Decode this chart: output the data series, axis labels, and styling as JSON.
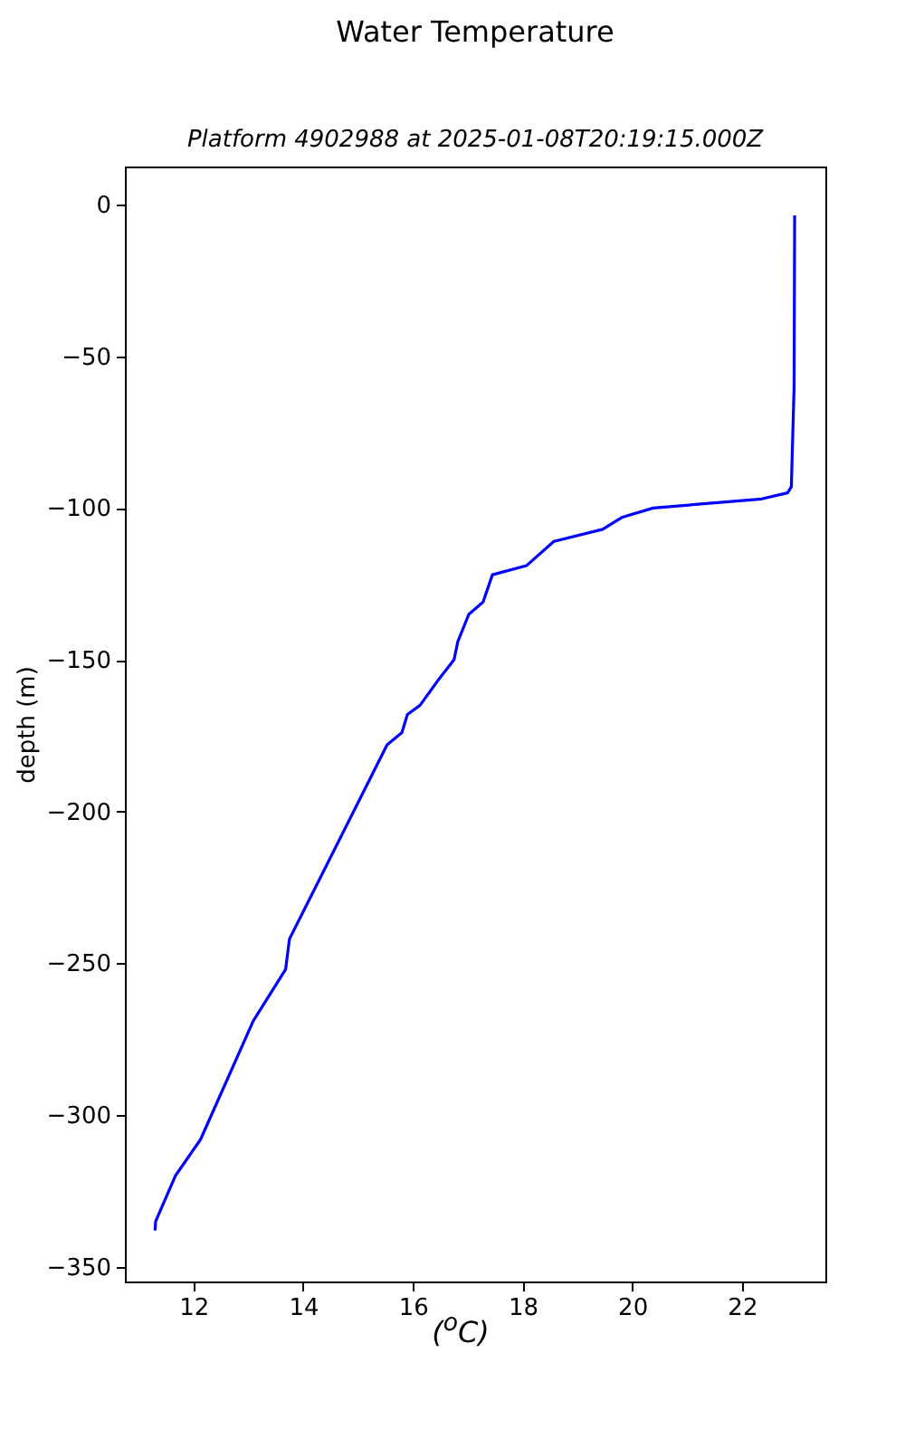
{
  "chart_data": {
    "type": "line",
    "title": "Water Temperature",
    "subtitle": "Platform 4902988 at 2025-01-08T20:19:15.000Z",
    "xlabel": "($^{o}$C)",
    "ylabel": "depth (m)",
    "x": [
      22.96,
      22.95,
      22.9,
      22.83,
      22.36,
      20.38,
      19.82,
      19.46,
      18.57,
      18.07,
      17.45,
      17.28,
      17.02,
      16.82,
      16.75,
      16.49,
      16.13,
      15.9,
      15.8,
      15.53,
      13.75,
      13.68,
      13.09,
      12.13,
      11.67,
      11.31,
      11.3
    ],
    "series": [
      {
        "color": "#0000ff",
        "values": [
          -3.6,
          -60,
          -93,
          -95,
          -97,
          -100,
          -103,
          -107,
          -111,
          -119,
          -122,
          -131,
          -135,
          -144,
          -150,
          -156,
          -165,
          -168,
          -174,
          -178,
          -242,
          -252,
          -269,
          -308,
          -320,
          -335,
          -338
        ]
      }
    ],
    "xlim": [
      10.75,
      23.52
    ],
    "ylim": [
      -354.8,
      12.5
    ],
    "xticks": [
      12,
      14,
      16,
      18,
      20,
      22
    ],
    "yticks": [
      0,
      -50,
      -100,
      -150,
      -200,
      -250,
      -300,
      -350
    ],
    "grid": false,
    "legend": false,
    "line_style": "solid",
    "marker": "none"
  }
}
